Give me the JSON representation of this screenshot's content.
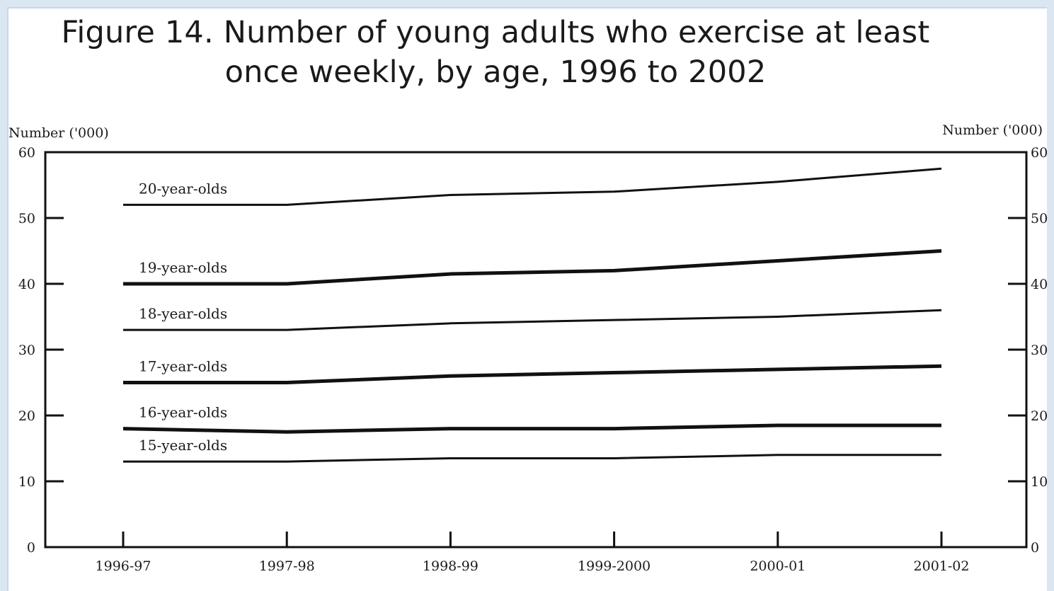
{
  "chart_data": {
    "type": "line",
    "title_lines": [
      "Figure 14. Number of young adults who exercise at least",
      "once weekly, by age, 1996 to 2002"
    ],
    "left_axis_title": "Number ('000)",
    "right_axis_title": "Number ('000)",
    "categories": [
      "1996-97",
      "1997-98",
      "1998-99",
      "1999-2000",
      "2000-01",
      "2001-02"
    ],
    "ylim": [
      0,
      60
    ],
    "yticks": [
      0,
      10,
      20,
      30,
      40,
      50,
      60
    ],
    "grid": false,
    "series": [
      {
        "name": "20-year-olds",
        "values": [
          52,
          52,
          53.5,
          54,
          55.5,
          57.5
        ],
        "bold": false
      },
      {
        "name": "19-year-olds",
        "values": [
          40,
          40,
          41.5,
          42,
          43.5,
          45
        ],
        "bold": true
      },
      {
        "name": "18-year-olds",
        "values": [
          33,
          33,
          34,
          34.5,
          35,
          36
        ],
        "bold": false
      },
      {
        "name": "17-year-olds",
        "values": [
          25,
          25,
          26,
          26.5,
          27,
          27.5
        ],
        "bold": true
      },
      {
        "name": "16-year-olds",
        "values": [
          18,
          17.5,
          18,
          18,
          18.5,
          18.5
        ],
        "bold": true
      },
      {
        "name": "15-year-olds",
        "values": [
          13,
          13,
          13.5,
          13.5,
          14,
          14
        ],
        "bold": false
      }
    ]
  }
}
